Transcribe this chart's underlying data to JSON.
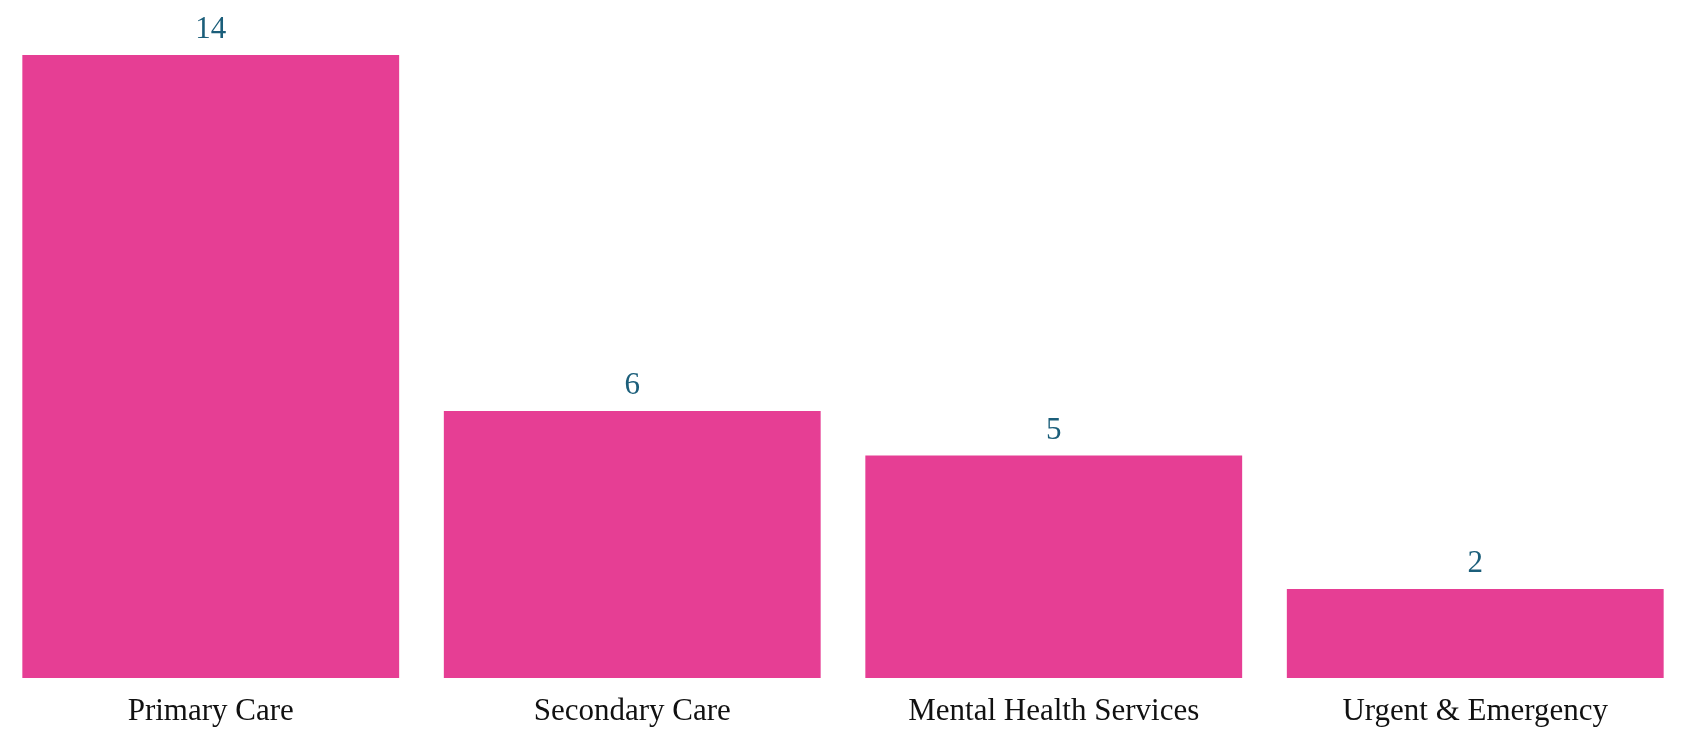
{
  "chart_data": {
    "type": "bar",
    "categories": [
      "Primary Care",
      "Secondary Care",
      "Mental Health Services",
      "Urgent & Emergency"
    ],
    "values": [
      14,
      6,
      5,
      2
    ],
    "color": "#e63e94",
    "data_labels": true
  }
}
